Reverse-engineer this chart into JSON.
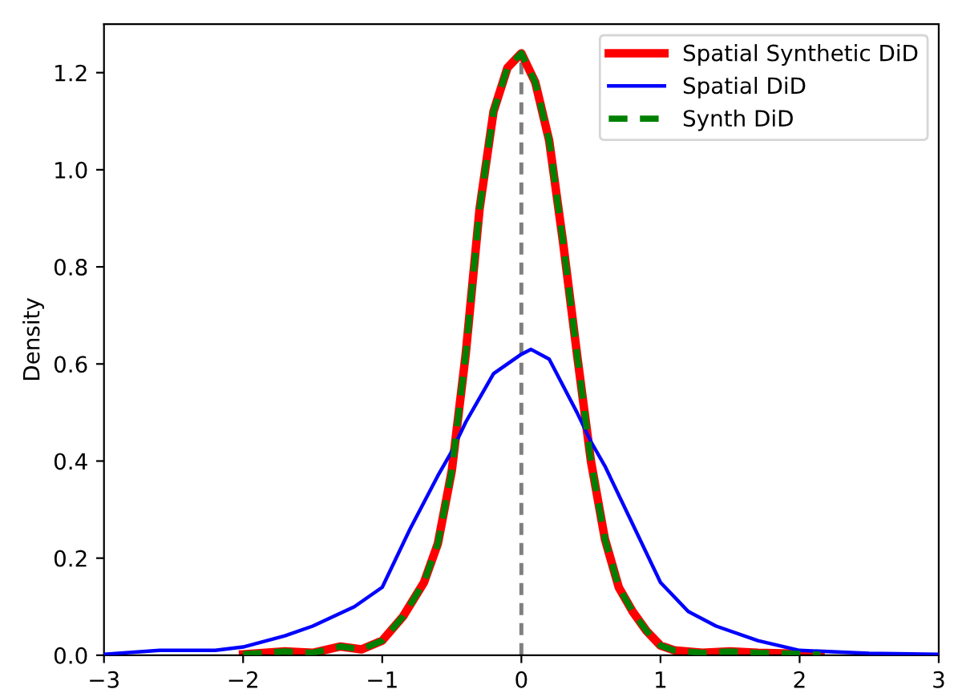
{
  "chart_data": {
    "type": "line",
    "ylabel": "Density",
    "xlim": [
      -3,
      3
    ],
    "ylim": [
      0,
      1.3
    ],
    "xticks": [
      {
        "value": -3,
        "label": "−3"
      },
      {
        "value": -2,
        "label": "−2"
      },
      {
        "value": -1,
        "label": "−1"
      },
      0,
      1,
      2,
      3
    ],
    "yticks": [
      {
        "value": 0,
        "label": "0.0"
      },
      {
        "value": 0.2,
        "label": "0.2"
      },
      {
        "value": 0.4,
        "label": "0.4"
      },
      {
        "value": 0.6,
        "label": "0.6"
      },
      {
        "value": 0.8,
        "label": "0.8"
      },
      {
        "value": 1.0,
        "label": "1.0"
      },
      {
        "value": 1.2,
        "label": "1.2"
      }
    ],
    "legend": "top right",
    "grid": false,
    "ref_lines": [
      {
        "axis": "x",
        "value": 0,
        "color": "#808080",
        "line_style": "dashed"
      }
    ],
    "series": [
      {
        "name": "Spatial Synthetic DiD",
        "color": "#ff0000",
        "line_style": "solid",
        "x": [
          -2,
          -1.7,
          -1.5,
          -1.3,
          -1.15,
          -1.0,
          -0.85,
          -0.7,
          -0.6,
          -0.5,
          -0.4,
          -0.3,
          -0.2,
          -0.1,
          0,
          0.1,
          0.2,
          0.3,
          0.4,
          0.5,
          0.6,
          0.7,
          0.8,
          0.9,
          1.0,
          1.1,
          1.3,
          1.5,
          1.7,
          2.0,
          2.15
        ],
        "values": [
          0.002,
          0.008,
          0.005,
          0.018,
          0.012,
          0.03,
          0.08,
          0.15,
          0.23,
          0.38,
          0.62,
          0.92,
          1.12,
          1.21,
          1.24,
          1.18,
          1.06,
          0.85,
          0.62,
          0.4,
          0.24,
          0.14,
          0.09,
          0.05,
          0.02,
          0.01,
          0.005,
          0.008,
          0.005,
          0.003,
          0.001
        ]
      },
      {
        "name": "Spatial DiD",
        "color": "#0000ff",
        "line_style": "solid",
        "x": [
          -3,
          -2.6,
          -2.2,
          -2.0,
          -1.7,
          -1.5,
          -1.2,
          -1.0,
          -0.8,
          -0.6,
          -0.5,
          -0.4,
          -0.2,
          0,
          0.07,
          0.2,
          0.4,
          0.5,
          0.6,
          0.8,
          1.0,
          1.2,
          1.4,
          1.7,
          2.0,
          2.5,
          3.0
        ],
        "values": [
          0.002,
          0.01,
          0.01,
          0.017,
          0.04,
          0.06,
          0.1,
          0.14,
          0.26,
          0.37,
          0.42,
          0.48,
          0.58,
          0.62,
          0.63,
          0.61,
          0.5,
          0.44,
          0.39,
          0.27,
          0.15,
          0.09,
          0.06,
          0.03,
          0.01,
          0.004,
          0.002
        ]
      },
      {
        "name": "Synth DiD",
        "color": "#008000",
        "line_style": "dashed",
        "x": [
          -2,
          -1.7,
          -1.5,
          -1.3,
          -1.15,
          -1.0,
          -0.85,
          -0.7,
          -0.6,
          -0.5,
          -0.4,
          -0.3,
          -0.2,
          -0.1,
          0,
          0.1,
          0.2,
          0.3,
          0.4,
          0.5,
          0.6,
          0.7,
          0.8,
          0.9,
          1.0,
          1.1,
          1.3,
          1.5,
          1.7,
          2.0,
          2.15
        ],
        "values": [
          0.002,
          0.008,
          0.005,
          0.018,
          0.012,
          0.03,
          0.08,
          0.15,
          0.23,
          0.38,
          0.62,
          0.92,
          1.12,
          1.21,
          1.24,
          1.18,
          1.06,
          0.85,
          0.62,
          0.4,
          0.24,
          0.14,
          0.09,
          0.05,
          0.02,
          0.01,
          0.005,
          0.008,
          0.005,
          0.003,
          0.001
        ]
      }
    ]
  }
}
